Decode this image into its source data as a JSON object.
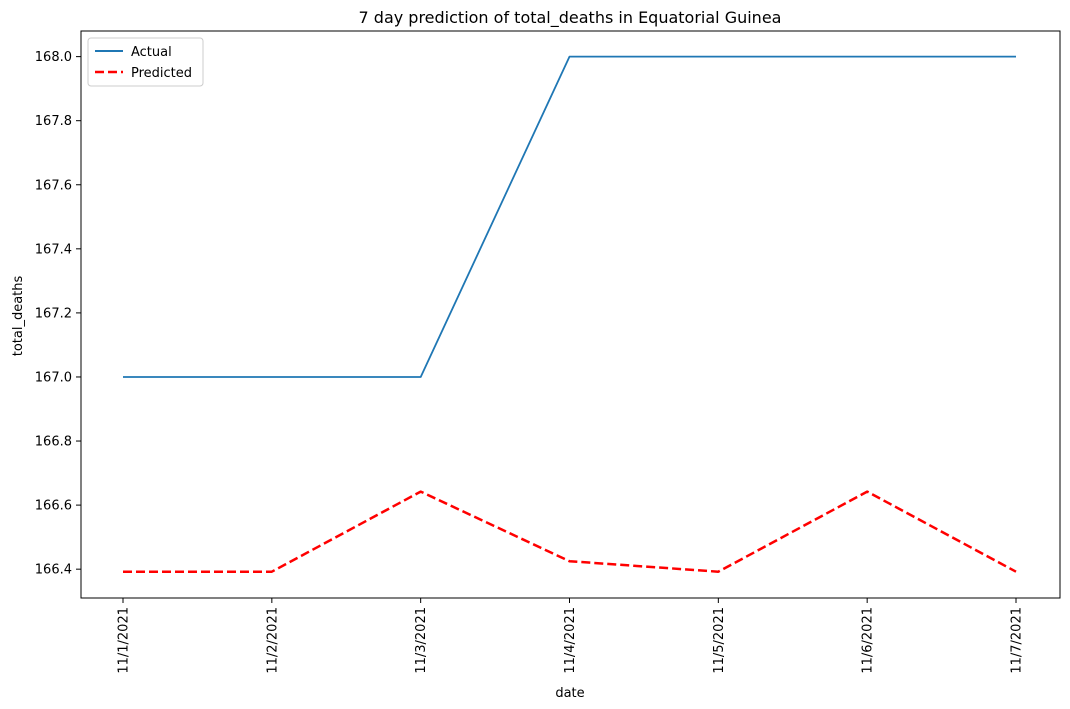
{
  "chart_data": {
    "type": "line",
    "title": "7 day prediction of total_deaths in Equatorial Guinea",
    "xlabel": "date",
    "ylabel": "total_deaths",
    "categories": [
      "11/1/2021",
      "11/2/2021",
      "11/3/2021",
      "11/4/2021",
      "11/5/2021",
      "11/6/2021",
      "11/7/2021"
    ],
    "ylim": [
      166.31,
      168.08
    ],
    "yticks": [
      "166.4",
      "166.6",
      "166.8",
      "167.0",
      "167.2",
      "167.4",
      "167.6",
      "167.8",
      "168.0"
    ],
    "series": [
      {
        "name": "Actual",
        "color": "#1f77b4",
        "style": "solid",
        "values": [
          167.0,
          167.0,
          167.0,
          168.0,
          168.0,
          168.0,
          168.0
        ]
      },
      {
        "name": "Predicted",
        "color": "#ff0000",
        "style": "dashed",
        "values": [
          166.392,
          166.392,
          166.642,
          166.425,
          166.392,
          166.642,
          166.392
        ]
      }
    ],
    "legend": "upper left",
    "grid": false
  }
}
